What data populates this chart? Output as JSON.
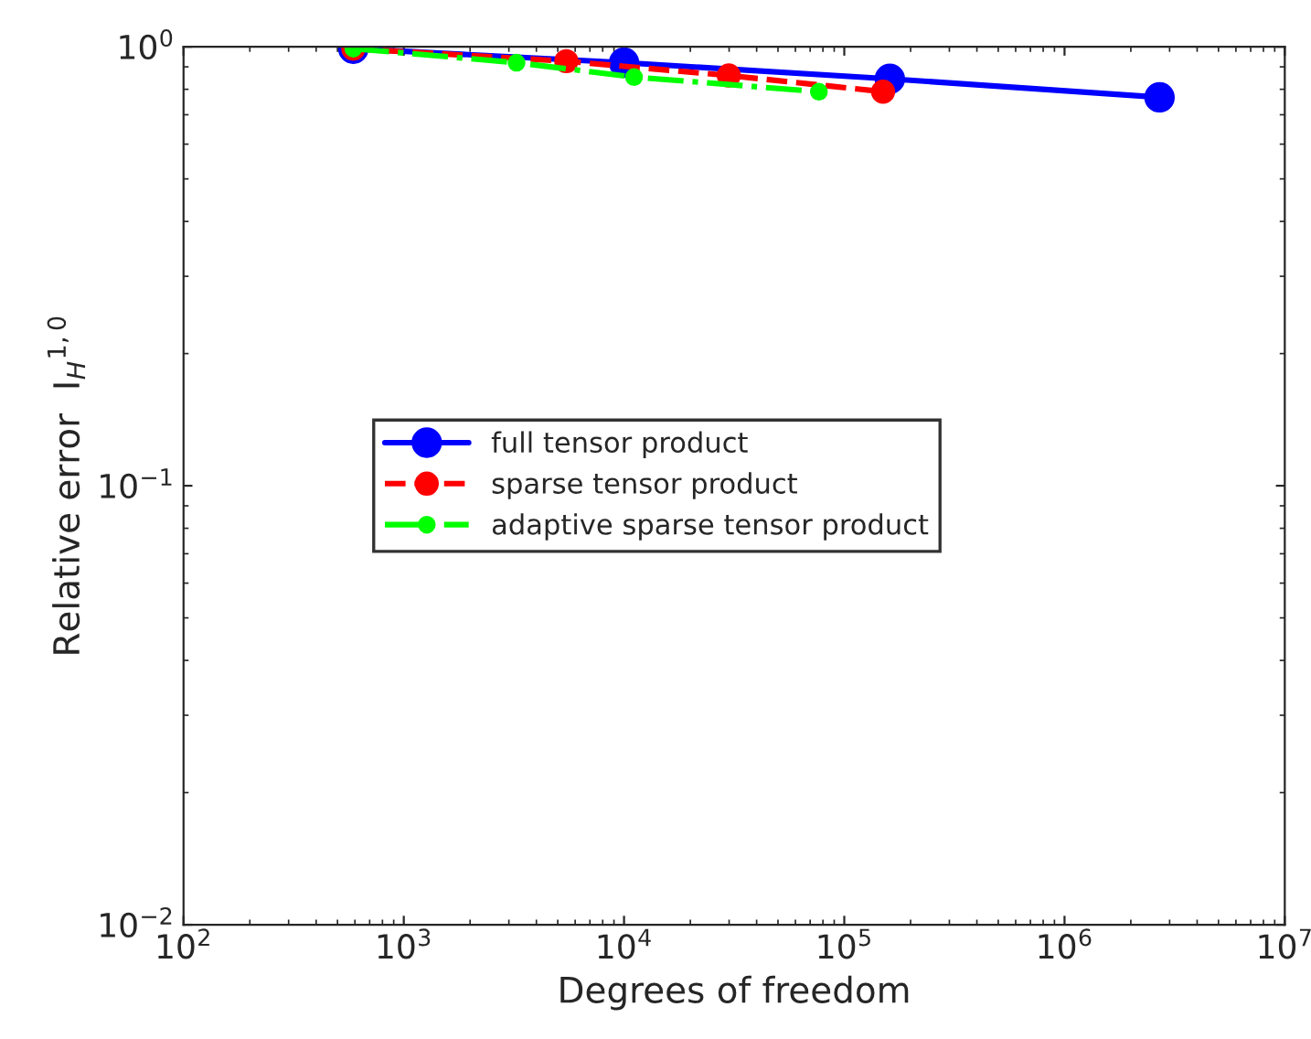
{
  "chart_data": {
    "type": "line",
    "xlabel": "Degrees of freedom",
    "ylabel": "Relative error  I$_{H}$$^{1,0}$",
    "log": "xy",
    "xlim": [
      100,
      10000000
    ],
    "ylim": [
      0.01,
      1
    ],
    "xticks": [
      {
        "value": 100,
        "label": "10$^{2}$"
      },
      {
        "value": 1000,
        "label": "10$^{3}$"
      },
      {
        "value": 10000,
        "label": "10$^{4}$"
      },
      {
        "value": 100000,
        "label": "10$^{5}$"
      },
      {
        "value": 1000000,
        "label": "10$^{6}$"
      },
      {
        "value": 10000000,
        "label": "10$^{7}$"
      }
    ],
    "yticks": [
      {
        "value": 0.01,
        "label": "10$^{−2}$"
      },
      {
        "value": 0.1,
        "label": "10$^{−1}$"
      },
      {
        "value": 1,
        "label": "10$^{0}$"
      }
    ],
    "marker": "circle",
    "legend": "center left",
    "grid": false,
    "series": [
      {
        "name": "full tensor product",
        "color": "#0000ff",
        "line_style": "solid",
        "x": [
          590,
          10000,
          161000,
          2700000
        ],
        "values": [
          0.99,
          0.92,
          0.845,
          0.767
        ]
      },
      {
        "name": "sparse tensor product",
        "color": "#ff0000",
        "line_style": "dashed",
        "x": [
          590,
          5470,
          29900,
          150000
        ],
        "values": [
          0.99,
          0.927,
          0.86,
          0.79
        ]
      },
      {
        "name": "adaptive sparse tensor product",
        "color": "#00ff00",
        "line_style": "dashdot",
        "x": [
          590,
          3250,
          11100,
          76700
        ],
        "values": [
          0.99,
          0.92,
          0.853,
          0.79
        ]
      }
    ]
  }
}
